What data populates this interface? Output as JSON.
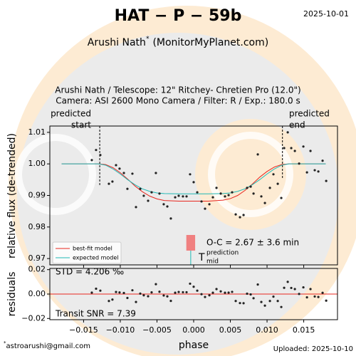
{
  "title": "HAT − P − 59b",
  "date": "2025-10-01",
  "author": "Arushi Nath",
  "author_mark": "*",
  "affiliation": "(MonitorMyPlanet.com)",
  "footer_mark": "*",
  "contact": "astroarushi@gmail.com",
  "uploaded": "Uploaded: 2025-10-10",
  "chart_data": [
    {
      "type": "scatter",
      "subtitle": [
        "Arushi Nath / Telescope: 12\" Ritchey- Chretien Pro (12.0\")",
        "Camera: ASI 2600 Mono Camera / Filter: R / Exp.: 180.0 s"
      ],
      "y_label": "relative flux (de-trended)",
      "xlim": [
        -0.0196,
        0.0196
      ],
      "ylim": [
        0.968,
        1.012
      ],
      "yticks": [
        0.97,
        0.98,
        0.99,
        {
          "value": 1.0,
          "label": "1.00"
        },
        1.01
      ],
      "color": "#222222",
      "x": [
        -0.01388,
        -0.0133,
        -0.01272,
        -0.01155,
        -0.01107,
        -0.01058,
        -0.0101,
        -0.00951,
        -0.00903,
        -0.00835,
        -0.00786,
        -0.00728,
        -0.0068,
        -0.00621,
        -0.00573,
        -0.00515,
        -0.00466,
        -0.00408,
        -0.00359,
        -0.00311,
        -0.00252,
        -0.00204,
        -0.00146,
        -0.00097,
        -0.00049,
        0,
        0.00049,
        0.00107,
        0.00155,
        0.00214,
        0.00262,
        0.00311,
        0.00369,
        0.00427,
        0.00476,
        0.00524,
        0.00573,
        0.00631,
        0.0068,
        0.00728,
        0.00777,
        0.00816,
        0.00874,
        0.00922,
        0.00971,
        0.01039,
        0.01087,
        0.01146,
        0.01194,
        0.01233,
        0.01282,
        0.0133,
        0.01379,
        0.01437,
        0.01495,
        0.01544,
        0.01592,
        0.0165,
        0.01699,
        0.01757,
        0.01806
      ],
      "values": [
        1.0012,
        1.0044,
        1.0028,
        0.9937,
        0.9944,
        0.9996,
        0.9985,
        0.9971,
        0.9921,
        0.9969,
        0.9863,
        0.9921,
        0.9899,
        0.9883,
        0.991,
        0.9971,
        0.9906,
        0.9872,
        0.9865,
        0.9827,
        0.9894,
        0.9899,
        0.9897,
        0.9897,
        0.9967,
        0.9942,
        0.991,
        0.9881,
        0.9858,
        0.9872,
        0.9894,
        0.9924,
        0.9906,
        0.9897,
        0.9901,
        0.991,
        0.984,
        0.9831,
        0.9838,
        0.9924,
        0.9928,
        0.9906,
        1.003,
        0.9897,
        0.9876,
        0.9924,
        0.9967,
        0.9937,
        0.9892,
        1.005,
        1.01,
        1.005,
        1.0041,
        1.0001,
        1.0055,
        0.9973,
        1.0041,
        0.998,
        0.9976,
        1.001,
        0.9946
      ],
      "models": [
        {
          "name": "best-fit model",
          "color": "#e8271f",
          "x": [
            -0.018,
            -0.015,
            -0.013,
            -0.012,
            -0.011,
            -0.01,
            -0.009,
            -0.008,
            -0.007,
            -0.006,
            -0.005,
            -0.004,
            -0.002,
            0,
            0.002,
            0.004,
            0.005,
            0.006,
            0.007,
            0.008,
            0.009,
            0.01,
            0.011,
            0.012,
            0.013,
            0.014,
            0.016,
            0.018
          ],
          "values": [
            1.0,
            1.0,
            1.0,
            0.9998,
            0.9988,
            0.9972,
            0.9952,
            0.993,
            0.9912,
            0.9898,
            0.9889,
            0.9884,
            0.9882,
            0.9882,
            0.9882,
            0.9885,
            0.989,
            0.99,
            0.9916,
            0.9936,
            0.9958,
            0.9976,
            0.999,
            0.9998,
            1.0,
            1.0,
            1.0,
            1.0
          ]
        },
        {
          "name": "expected model",
          "color": "#1fb8b4",
          "x": [
            -0.018,
            -0.015,
            -0.013,
            -0.012,
            -0.011,
            -0.01,
            -0.009,
            -0.008,
            -0.007,
            -0.006,
            -0.005,
            -0.004,
            -0.002,
            0,
            0.002,
            0.004,
            0.005,
            0.006,
            0.007,
            0.008,
            0.009,
            0.01,
            0.011,
            0.012,
            0.013,
            0.014,
            0.016,
            0.018
          ],
          "values": [
            1.0,
            1.0,
            1.0,
            0.9996,
            0.9984,
            0.9968,
            0.995,
            0.9934,
            0.9921,
            0.9913,
            0.9908,
            0.9906,
            0.9905,
            0.9905,
            0.9905,
            0.9906,
            0.9908,
            0.9913,
            0.9921,
            0.9934,
            0.995,
            0.9968,
            0.9984,
            0.9996,
            1.0,
            1.0,
            1.0,
            1.0
          ]
        }
      ],
      "predicted_start": -0.0128,
      "predicted_start_label": [
        "predicted",
        "start"
      ],
      "predicted_end": 0.0121,
      "predicted_end_label": [
        "predicted",
        "end"
      ],
      "prediction_mid": -0.0004,
      "prediction_mid_error": 0.0006,
      "oc_label": "O-C = 2.67 ± 3.6 min",
      "t_mid_label": [
        "T",
        "prediction",
        "mid"
      ]
    },
    {
      "type": "scatter",
      "y_label": "residuals",
      "x_label": "phase",
      "xlim": [
        -0.0196,
        0.0196
      ],
      "ylim": [
        -0.021,
        0.021
      ],
      "yticks": [
        {
          "value": -0.02,
          "label": "−0.02"
        },
        {
          "value": 0.0,
          "label": "0.00"
        },
        0.02
      ],
      "xticks": [
        {
          "value": -0.015,
          "label": "−0.015"
        },
        {
          "value": -0.01,
          "label": "−0.010"
        },
        {
          "value": -0.005,
          "label": "−0.005"
        },
        {
          "value": 0.0,
          "label": "0.000"
        },
        0.005,
        {
          "value": 0.01,
          "label": "0.010"
        },
        0.015
      ],
      "color": "#222222",
      "line_color": "#e8271f",
      "values": [
        0.0012,
        0.0044,
        0.0028,
        -0.0057,
        -0.0045,
        0.0017,
        0.0013,
        0.0009,
        -0.0032,
        0.0031,
        -0.0065,
        0.0004,
        -0.001,
        -0.0018,
        0.0014,
        0.0081,
        0.0019,
        -0.0012,
        -0.0019,
        -0.0056,
        0.0011,
        0.0017,
        0.0015,
        0.0015,
        0.0085,
        0.006,
        0.0028,
        -0.0001,
        -0.0024,
        -0.001,
        0.0011,
        0.0041,
        0.0022,
        0.0011,
        0.0012,
        0.0018,
        -0.0057,
        -0.0074,
        -0.0075,
        0.0003,
        -0.0003,
        -0.0034,
        0.0078,
        -0.0065,
        -0.0095,
        -0.0057,
        -0.0021,
        -0.0057,
        -0.0106,
        0.0051,
        0.01,
        0.005,
        0.0041,
        0.0001,
        0.0055,
        -0.0027,
        0.0041,
        -0.002,
        -0.0024,
        0.001,
        -0.0054
      ],
      "std_label": "STD = 4.206 ‰",
      "snr_label": "Transit SNR = 7.39"
    }
  ]
}
